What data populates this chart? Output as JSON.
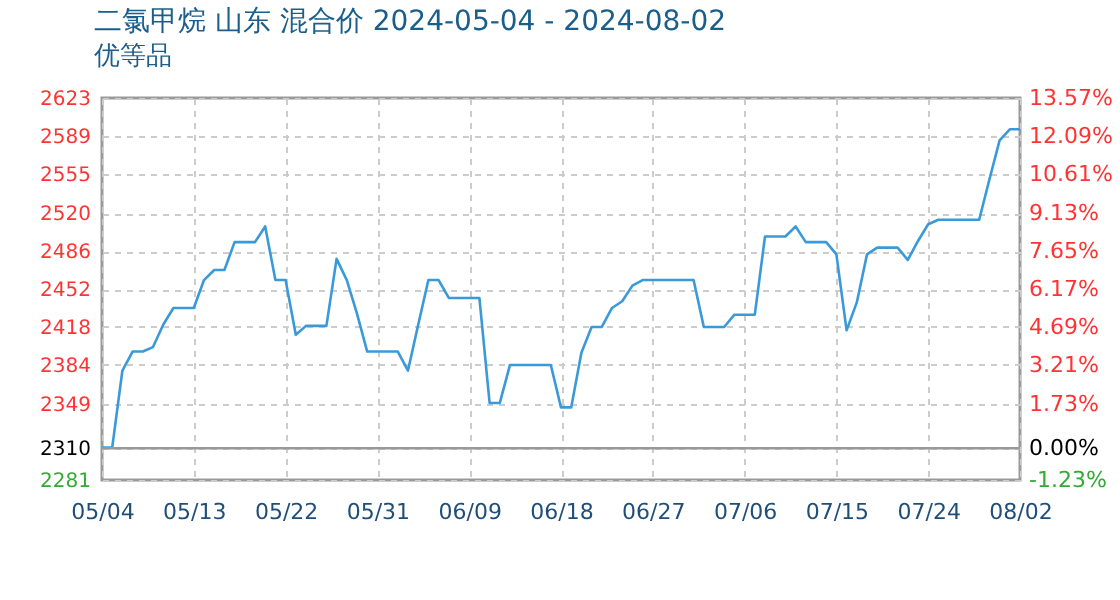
{
  "chart_data": {
    "type": "line",
    "title": "二氯甲烷 山东 混合价 2024-05-04 - 2024-08-02",
    "subtitle": "优等品",
    "x": [
      "2024-05-04",
      "2024-05-05",
      "2024-05-06",
      "2024-05-07",
      "2024-05-08",
      "2024-05-09",
      "2024-05-10",
      "2024-05-11",
      "2024-05-12",
      "2024-05-13",
      "2024-05-14",
      "2024-05-15",
      "2024-05-16",
      "2024-05-17",
      "2024-05-18",
      "2024-05-19",
      "2024-05-20",
      "2024-05-21",
      "2024-05-22",
      "2024-05-23",
      "2024-05-24",
      "2024-05-25",
      "2024-05-26",
      "2024-05-27",
      "2024-05-28",
      "2024-05-29",
      "2024-05-30",
      "2024-05-31",
      "2024-06-01",
      "2024-06-02",
      "2024-06-03",
      "2024-06-04",
      "2024-06-05",
      "2024-06-06",
      "2024-06-07",
      "2024-06-08",
      "2024-06-09",
      "2024-06-10",
      "2024-06-11",
      "2024-06-12",
      "2024-06-13",
      "2024-06-14",
      "2024-06-15",
      "2024-06-16",
      "2024-06-17",
      "2024-06-18",
      "2024-06-19",
      "2024-06-20",
      "2024-06-21",
      "2024-06-22",
      "2024-06-23",
      "2024-06-24",
      "2024-06-25",
      "2024-06-26",
      "2024-06-27",
      "2024-06-28",
      "2024-06-29",
      "2024-06-30",
      "2024-07-01",
      "2024-07-02",
      "2024-07-03",
      "2024-07-04",
      "2024-07-05",
      "2024-07-06",
      "2024-07-07",
      "2024-07-08",
      "2024-07-09",
      "2024-07-10",
      "2024-07-11",
      "2024-07-12",
      "2024-07-13",
      "2024-07-14",
      "2024-07-15",
      "2024-07-16",
      "2024-07-17",
      "2024-07-18",
      "2024-07-19",
      "2024-07-20",
      "2024-07-21",
      "2024-07-22",
      "2024-07-23",
      "2024-07-24",
      "2024-07-25",
      "2024-07-26",
      "2024-07-27",
      "2024-07-28",
      "2024-07-29",
      "2024-07-30",
      "2024-07-31",
      "2024-08-01",
      "2024-08-02"
    ],
    "series": [
      {
        "color": "#3a9ad9",
        "values": [
          2310,
          2310,
          2379,
          2396,
          2396,
          2400,
          2420,
          2435,
          2435,
          2435,
          2460,
          2469,
          2469,
          2494,
          2494,
          2494,
          2508,
          2460,
          2460,
          2411,
          2419,
          2419,
          2419,
          2479,
          2460,
          2430,
          2396,
          2396,
          2396,
          2396,
          2379,
          2420,
          2460,
          2460,
          2444,
          2444,
          2444,
          2444,
          2350,
          2350,
          2384,
          2384,
          2384,
          2384,
          2384,
          2346,
          2346,
          2395,
          2418,
          2418,
          2435,
          2441,
          2455,
          2460,
          2460,
          2460,
          2460,
          2460,
          2460,
          2418,
          2418,
          2418,
          2429,
          2429,
          2429,
          2499,
          2499,
          2499,
          2508,
          2494,
          2494,
          2494,
          2483,
          2415,
          2440,
          2483,
          2489,
          2489,
          2489,
          2478,
          2495,
          2510,
          2514,
          2514,
          2514,
          2514,
          2514,
          2550,
          2585,
          2595,
          2595
        ]
      }
    ],
    "xlim": [
      "2024-05-04",
      "2024-08-02"
    ],
    "xticks": [
      {
        "value": "2024-05-04",
        "label": "05/04"
      },
      {
        "value": "2024-05-13",
        "label": "05/13"
      },
      {
        "value": "2024-05-22",
        "label": "05/22"
      },
      {
        "value": "2024-05-31",
        "label": "05/31"
      },
      {
        "value": "2024-06-09",
        "label": "06/09"
      },
      {
        "value": "2024-06-18",
        "label": "06/18"
      },
      {
        "value": "2024-06-27",
        "label": "06/27"
      },
      {
        "value": "2024-07-06",
        "label": "07/06"
      },
      {
        "value": "2024-07-15",
        "label": "07/15"
      },
      {
        "value": "2024-07-24",
        "label": "07/24"
      },
      {
        "value": "2024-08-02",
        "label": "08/02"
      }
    ],
    "ylim": [
      2281,
      2623
    ],
    "yticks": [
      2281,
      2310,
      2349,
      2384,
      2418,
      2452,
      2486,
      2520,
      2555,
      2589,
      2623
    ],
    "y2lim": [
      -1.23,
      13.57
    ],
    "y2ticks": [
      {
        "value": -1.23,
        "label": "-1.23%"
      },
      {
        "value": 0,
        "label": "0.00%"
      },
      {
        "value": 1.73,
        "label": "1.73%"
      },
      {
        "value": 3.21,
        "label": "3.21%"
      },
      {
        "value": 4.69,
        "label": "4.69%"
      },
      {
        "value": 6.17,
        "label": "6.17%"
      },
      {
        "value": 7.65,
        "label": "7.65%"
      },
      {
        "value": 9.13,
        "label": "9.13%"
      },
      {
        "value": 10.61,
        "label": "10.61%"
      },
      {
        "value": 12.09,
        "label": "12.09%"
      },
      {
        "value": 13.57,
        "label": "13.57%"
      }
    ],
    "ref_lines": [
      {
        "axis": "y2",
        "value": 0,
        "color": "#999999"
      }
    ],
    "grid": true,
    "marker": "none",
    "line_style": "solid"
  }
}
